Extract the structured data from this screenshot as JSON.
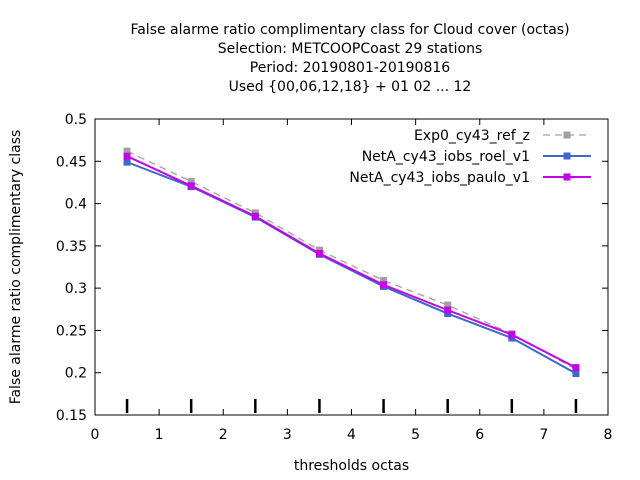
{
  "chart_data": {
    "type": "line",
    "title_lines": [
      "False alarme ratio complimentary class  for Cloud cover (octas)",
      "Selection: METCOOPCoast     29 stations",
      "Period: 20190801-20190816",
      "Used {00,06,12,18} + 01 02 ... 12"
    ],
    "xlabel": "thresholds octas",
    "ylabel": "False alarme ratio complimentary class",
    "xlim": [
      0,
      8
    ],
    "ylim": [
      0.15,
      0.5
    ],
    "xticks": [
      0,
      1,
      2,
      3,
      4,
      5,
      6,
      7,
      8
    ],
    "yticks": [
      0.15,
      0.2,
      0.25,
      0.3,
      0.35,
      0.4,
      0.45,
      0.5
    ],
    "xtick_labels": [
      "0",
      "1",
      "2",
      "3",
      "4",
      "5",
      "6",
      "7",
      "8"
    ],
    "ytick_labels": [
      "0.15",
      "0.2",
      "0.25",
      "0.3",
      "0.35",
      "0.4",
      "0.45",
      "0.5"
    ],
    "legend_position": "top-right",
    "grid": false,
    "x": [
      0.5,
      1.5,
      2.5,
      3.5,
      4.5,
      5.5,
      6.5,
      7.5
    ],
    "series": [
      {
        "name": "Exp0_cy43_ref_z",
        "values": [
          0.462,
          0.426,
          0.389,
          0.345,
          0.309,
          0.28,
          0.246,
          0.204
        ],
        "color": "#a0a0a0",
        "dash": true
      },
      {
        "name": "NetA_cy43_iobs_roel_v1",
        "values": [
          0.449,
          0.42,
          0.384,
          0.34,
          0.302,
          0.27,
          0.241,
          0.199
        ],
        "color": "#3f67c8",
        "dash": false
      },
      {
        "name": "NetA_cy43_iobs_paulo_v1",
        "values": [
          0.456,
          0.421,
          0.385,
          0.341,
          0.304,
          0.274,
          0.245,
          0.206
        ],
        "color": "#c400e8",
        "dash": false
      }
    ],
    "sample_markers_x": [
      0.5,
      1.5,
      2.5,
      3.5,
      4.5,
      5.5,
      6.5,
      7.5
    ]
  }
}
